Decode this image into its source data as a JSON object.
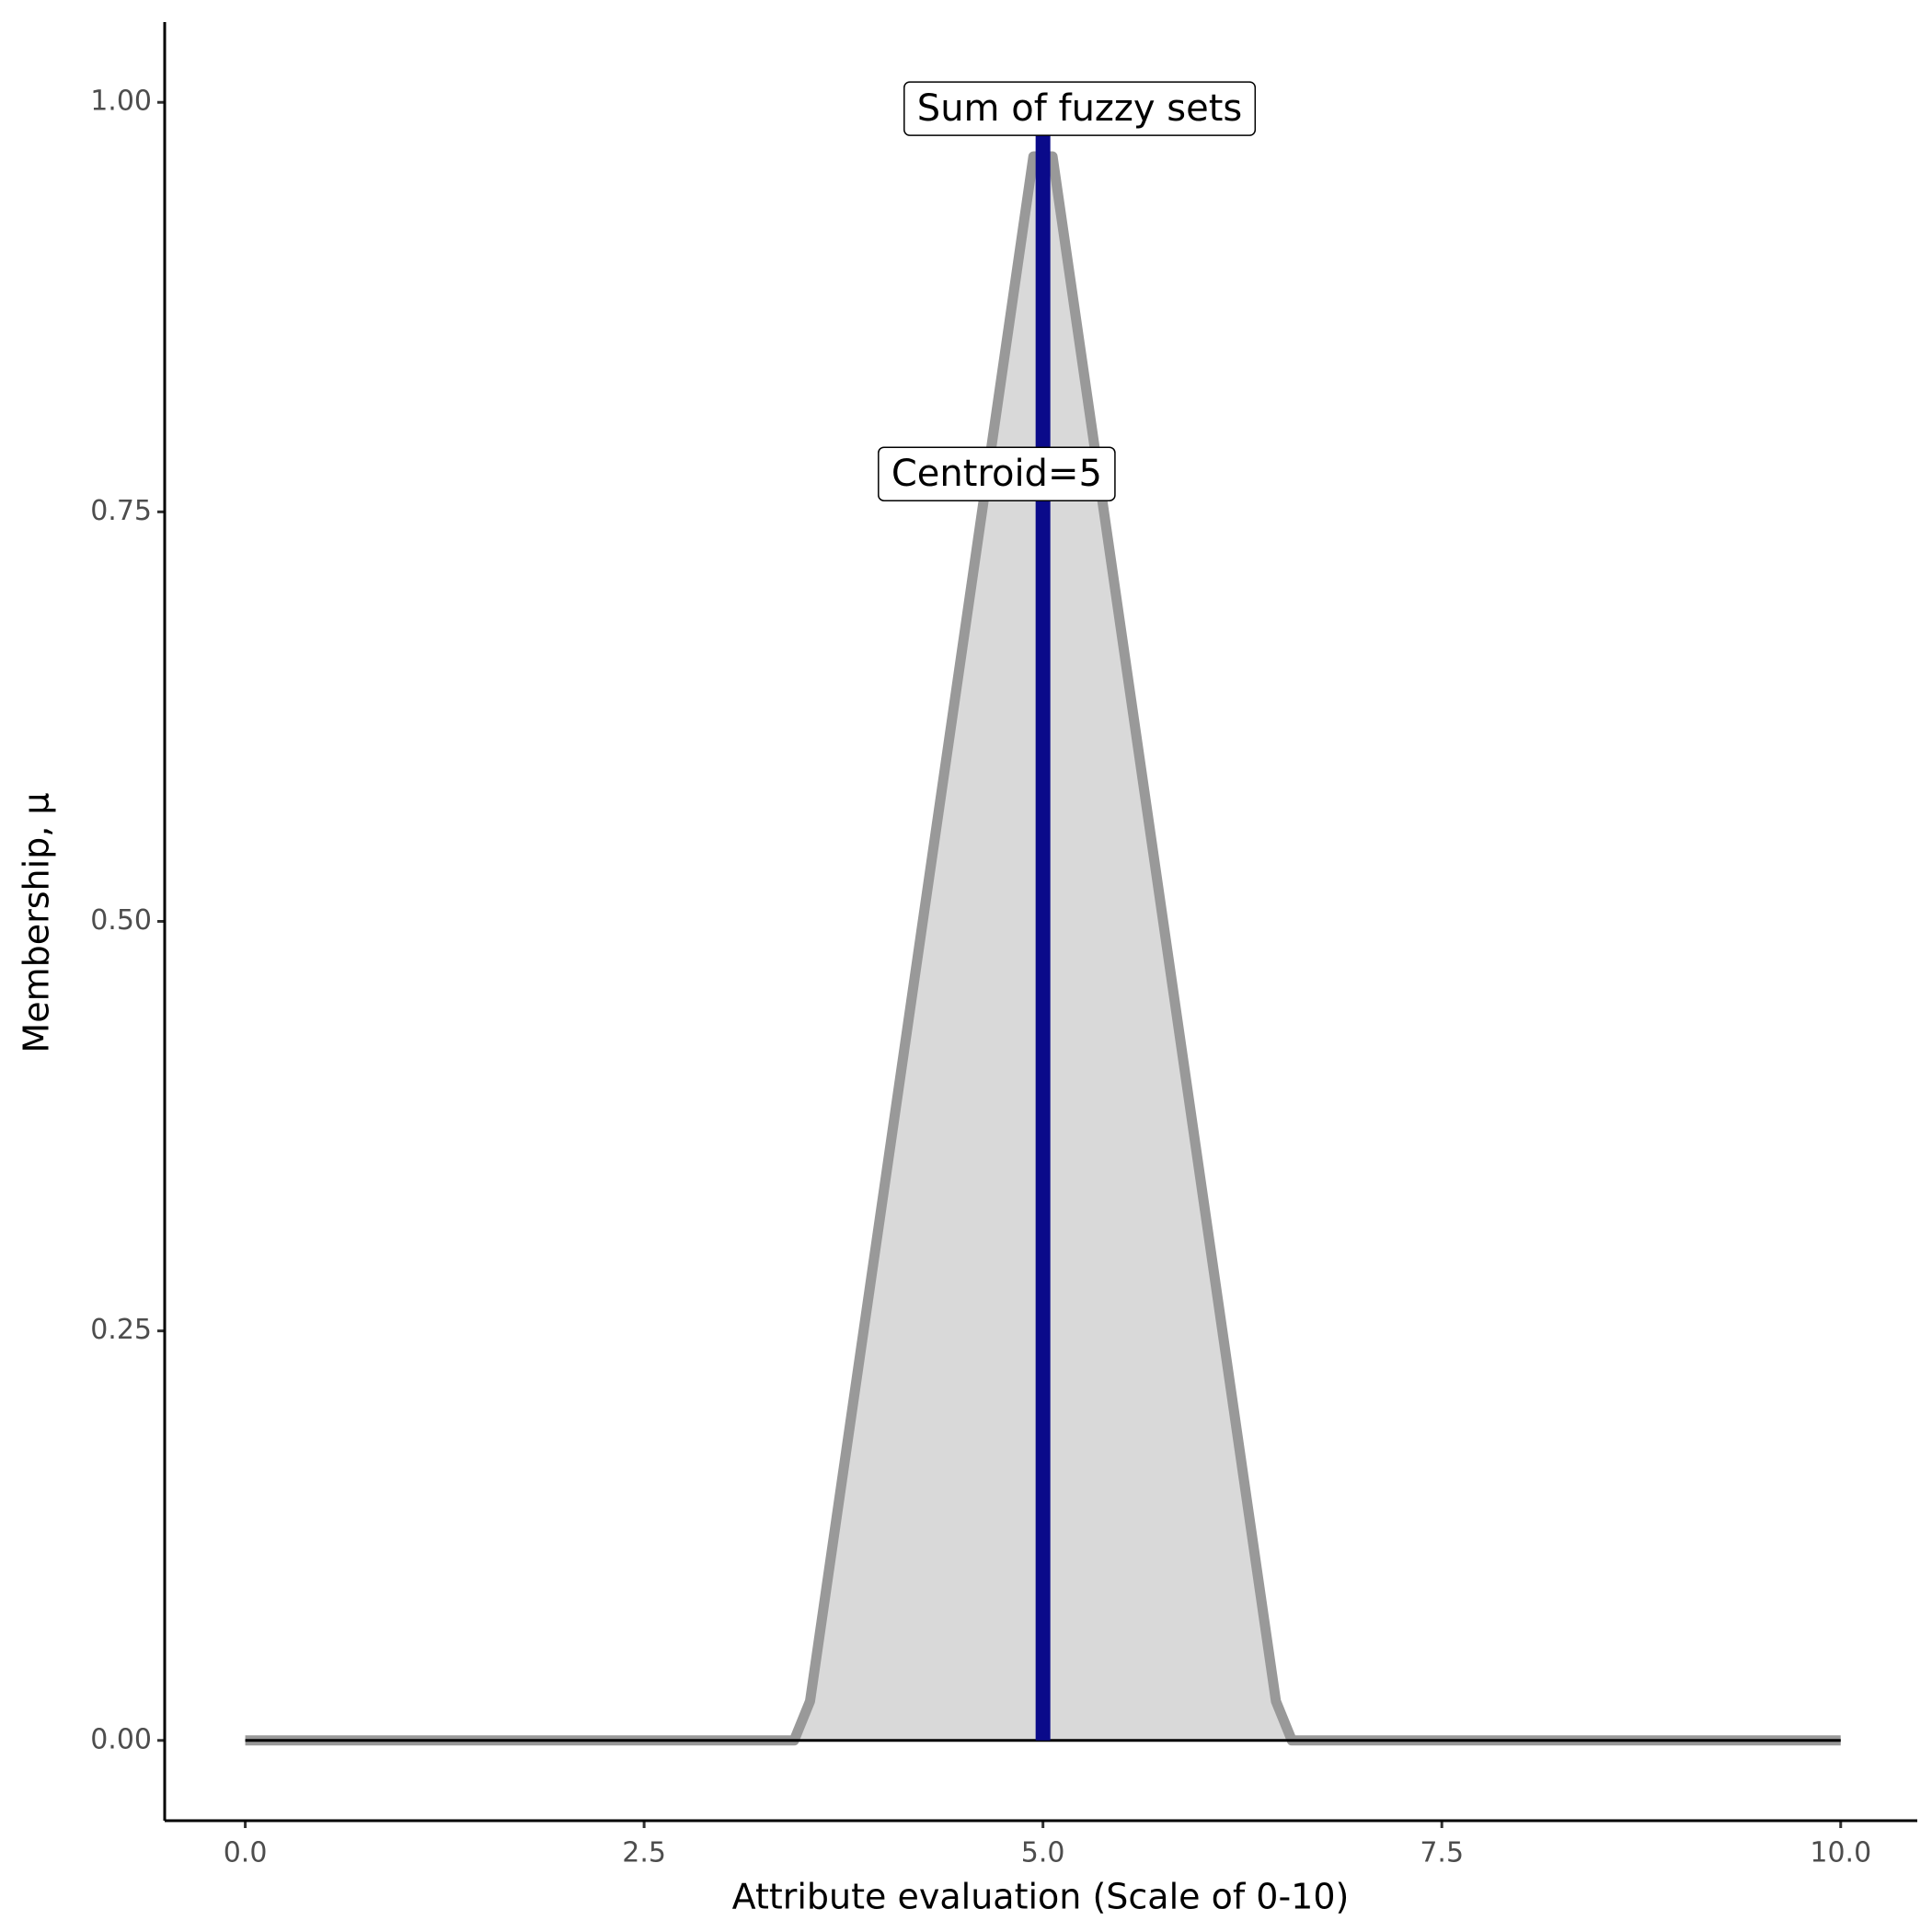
{
  "chart_data": {
    "type": "area",
    "xlabel": "Attribute evaluation (Scale of 0-10)",
    "ylabel": "Membership, μ",
    "series": [
      {
        "x": [
          0,
          3.44,
          3.54,
          4.94,
          5.06,
          6.46,
          6.56,
          10
        ],
        "values": [
          0,
          0,
          0.024,
          0.967,
          0.967,
          0.024,
          0,
          0
        ],
        "color": "#999999",
        "fill": "#d9d9d9"
      }
    ],
    "baseline": {
      "value": 0,
      "color": "#000000"
    },
    "centroid": {
      "x": 5,
      "ymin": 0,
      "ymax": 1,
      "color": "#0a0a8a"
    },
    "annotations": [
      {
        "text": "Sum of fuzzy sets",
        "x": 5.23,
        "y": 0.995
      },
      {
        "text": "Centroid=5",
        "x": 4.71,
        "y": 0.772
      }
    ],
    "xlim": [
      -0.505,
      10.48
    ],
    "ylim": [
      -0.049,
      1.049
    ],
    "xticks": [
      {
        "value": 0,
        "label": "0.0"
      },
      2.5,
      {
        "value": 5,
        "label": "5.0"
      },
      7.5,
      {
        "value": 10,
        "label": "10.0"
      }
    ],
    "yticks": [
      {
        "value": 0,
        "label": "0.00"
      },
      0.25,
      {
        "value": 0.5,
        "label": "0.50"
      },
      0.75,
      {
        "value": 1,
        "label": "1.00"
      }
    ]
  }
}
